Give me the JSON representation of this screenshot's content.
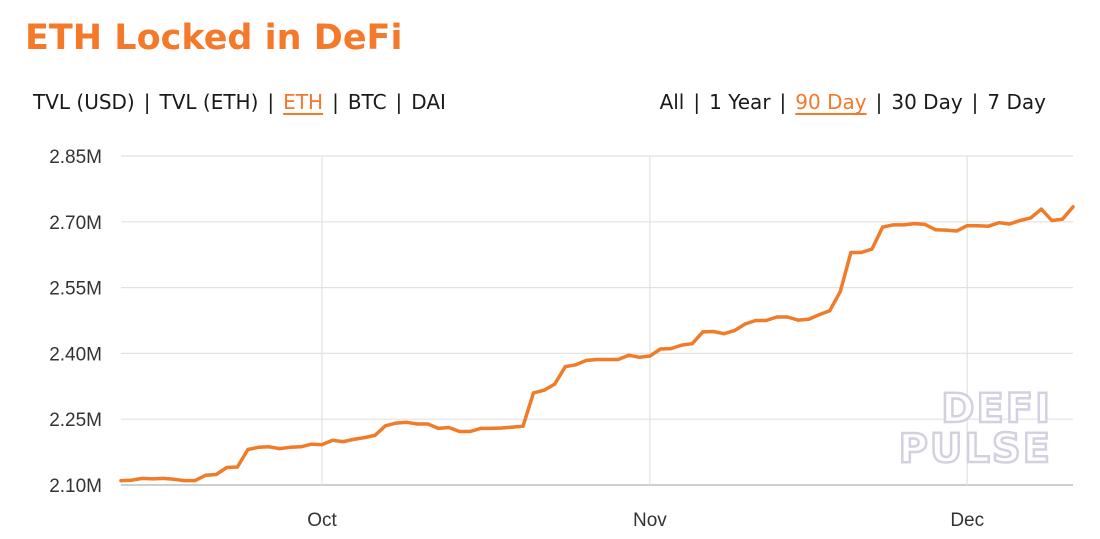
{
  "title": "ETH Locked in DeFi",
  "metric_options": [
    {
      "label": "TVL (USD)",
      "active": false
    },
    {
      "label": "TVL (ETH)",
      "active": false
    },
    {
      "label": "ETH",
      "active": true
    },
    {
      "label": "BTC",
      "active": false
    },
    {
      "label": "DAI",
      "active": false
    }
  ],
  "range_options": [
    {
      "label": "All",
      "active": false
    },
    {
      "label": "1 Year",
      "active": false
    },
    {
      "label": "90 Day",
      "active": true
    },
    {
      "label": "30 Day",
      "active": false
    },
    {
      "label": "7 Day",
      "active": false
    }
  ],
  "colors": {
    "accent": "#f4792b",
    "line": "#f07c2a",
    "grid": "#e2e2e2",
    "watermark": "#d4d0e2"
  },
  "watermark": [
    "DEFI",
    "PULSE"
  ],
  "chart_data": {
    "type": "line",
    "title": "ETH Locked in DeFi",
    "xlabel": "",
    "ylabel": "",
    "grid": true,
    "legend": "none",
    "xlim": [
      "2019-09-12",
      "2019-12-11"
    ],
    "ylim": [
      2.1,
      2.85
    ],
    "y_ticks": [
      2.1,
      2.25,
      2.4,
      2.55,
      2.7,
      2.85
    ],
    "y_tick_labels": [
      "2.10M",
      "2.25M",
      "2.40M",
      "2.55M",
      "2.70M",
      "2.85M"
    ],
    "x_ticks": [
      "2019-10-01",
      "2019-11-01",
      "2019-12-01"
    ],
    "x_tick_labels": [
      "Oct",
      "Nov",
      "Dec"
    ],
    "series": [
      {
        "points": [
          [
            "2019-09-12",
            2.11
          ],
          [
            "2019-09-13",
            2.111
          ],
          [
            "2019-09-14",
            2.115
          ],
          [
            "2019-09-15",
            2.114
          ],
          [
            "2019-09-16",
            2.115
          ],
          [
            "2019-09-17",
            2.113
          ],
          [
            "2019-09-18",
            2.11
          ],
          [
            "2019-09-19",
            2.11
          ],
          [
            "2019-09-20",
            2.122
          ],
          [
            "2019-09-21",
            2.124
          ],
          [
            "2019-09-22",
            2.14
          ],
          [
            "2019-09-23",
            2.141
          ],
          [
            "2019-09-24",
            2.181
          ],
          [
            "2019-09-25",
            2.186
          ],
          [
            "2019-09-26",
            2.187
          ],
          [
            "2019-09-27",
            2.183
          ],
          [
            "2019-09-28",
            2.186
          ],
          [
            "2019-09-29",
            2.187
          ],
          [
            "2019-09-30",
            2.193
          ],
          [
            "2019-10-01",
            2.192
          ],
          [
            "2019-10-02",
            2.202
          ],
          [
            "2019-10-03",
            2.199
          ],
          [
            "2019-10-04",
            2.204
          ],
          [
            "2019-10-05",
            2.208
          ],
          [
            "2019-10-06",
            2.213
          ],
          [
            "2019-10-07",
            2.235
          ],
          [
            "2019-10-08",
            2.241
          ],
          [
            "2019-10-09",
            2.243
          ],
          [
            "2019-10-10",
            2.239
          ],
          [
            "2019-10-11",
            2.239
          ],
          [
            "2019-10-12",
            2.229
          ],
          [
            "2019-10-13",
            2.231
          ],
          [
            "2019-10-14",
            2.222
          ],
          [
            "2019-10-15",
            2.222
          ],
          [
            "2019-10-16",
            2.229
          ],
          [
            "2019-10-17",
            2.229
          ],
          [
            "2019-10-18",
            2.23
          ],
          [
            "2019-10-19",
            2.232
          ],
          [
            "2019-10-20",
            2.234
          ],
          [
            "2019-10-21",
            2.31
          ],
          [
            "2019-10-22",
            2.316
          ],
          [
            "2019-10-23",
            2.33
          ],
          [
            "2019-10-24",
            2.37
          ],
          [
            "2019-10-25",
            2.374
          ],
          [
            "2019-10-26",
            2.384
          ],
          [
            "2019-10-27",
            2.386
          ],
          [
            "2019-10-28",
            2.386
          ],
          [
            "2019-10-29",
            2.386
          ],
          [
            "2019-10-30",
            2.396
          ],
          [
            "2019-10-31",
            2.391
          ],
          [
            "2019-11-01",
            2.394
          ],
          [
            "2019-11-02",
            2.41
          ],
          [
            "2019-11-03",
            2.411
          ],
          [
            "2019-11-04",
            2.419
          ],
          [
            "2019-11-05",
            2.422
          ],
          [
            "2019-11-06",
            2.449
          ],
          [
            "2019-11-07",
            2.45
          ],
          [
            "2019-11-08",
            2.445
          ],
          [
            "2019-11-09",
            2.452
          ],
          [
            "2019-11-10",
            2.467
          ],
          [
            "2019-11-11",
            2.475
          ],
          [
            "2019-11-12",
            2.475
          ],
          [
            "2019-11-13",
            2.483
          ],
          [
            "2019-11-14",
            2.483
          ],
          [
            "2019-11-15",
            2.476
          ],
          [
            "2019-11-16",
            2.478
          ],
          [
            "2019-11-17",
            2.488
          ],
          [
            "2019-11-18",
            2.497
          ],
          [
            "2019-11-19",
            2.541
          ],
          [
            "2019-11-20",
            2.63
          ],
          [
            "2019-11-21",
            2.63
          ],
          [
            "2019-11-22",
            2.638
          ],
          [
            "2019-11-23",
            2.688
          ],
          [
            "2019-11-24",
            2.693
          ],
          [
            "2019-11-25",
            2.693
          ],
          [
            "2019-11-26",
            2.696
          ],
          [
            "2019-11-27",
            2.694
          ],
          [
            "2019-11-28",
            2.682
          ],
          [
            "2019-11-29",
            2.681
          ],
          [
            "2019-11-30",
            2.679
          ],
          [
            "2019-12-01",
            2.691
          ],
          [
            "2019-12-02",
            2.691
          ],
          [
            "2019-12-03",
            2.69
          ],
          [
            "2019-12-04",
            2.698
          ],
          [
            "2019-12-05",
            2.695
          ],
          [
            "2019-12-06",
            2.703
          ],
          [
            "2019-12-07",
            2.709
          ],
          [
            "2019-12-08",
            2.729
          ],
          [
            "2019-12-09",
            2.703
          ],
          [
            "2019-12-10",
            2.706
          ],
          [
            "2019-12-11",
            2.734
          ]
        ]
      }
    ]
  }
}
